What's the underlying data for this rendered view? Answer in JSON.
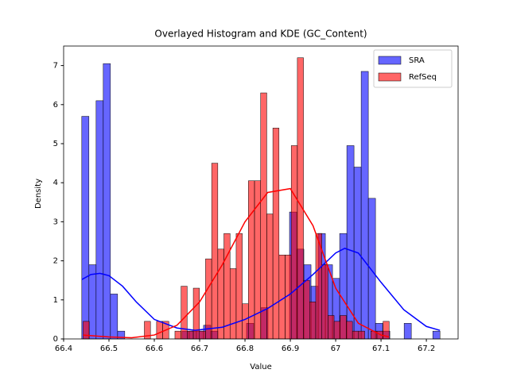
{
  "chart_data": {
    "type": "histogram",
    "title": "Overlayed Histogram and KDE (GC_Content)",
    "xlabel": "Value",
    "ylabel": "Density",
    "xlim": [
      66.4,
      67.27
    ],
    "ylim": [
      0,
      7.5
    ],
    "xticks": [
      66.4,
      66.5,
      66.6,
      66.7,
      66.8,
      66.9,
      67.0,
      67.1,
      67.2
    ],
    "yticks": [
      0,
      1,
      2,
      3,
      4,
      5,
      6,
      7
    ],
    "legend": "upper right",
    "series": [
      {
        "name": "SRA",
        "color": "blue",
        "bins": [
          66.44,
          66.4558,
          66.4716,
          66.4874,
          66.5032,
          66.519,
          66.5348,
          66.5506,
          66.5664,
          66.5822,
          66.598,
          66.6138,
          66.6296,
          66.6454,
          66.6612,
          66.677,
          66.6928,
          66.7086,
          66.7244,
          66.7402,
          66.756,
          66.7718,
          66.7876,
          66.8034,
          66.8192,
          66.835,
          66.8508,
          66.8666,
          66.8824,
          66.8982,
          66.914,
          66.9298,
          66.9456,
          66.9614,
          66.9772,
          66.993,
          67.0088,
          67.0246,
          67.0404,
          67.0562,
          67.072,
          67.0878,
          67.1036,
          67.1194,
          67.1352,
          67.151,
          67.1668,
          67.1826,
          67.1984,
          67.2142,
          67.23
        ],
        "values": [
          5.7,
          1.9,
          6.1,
          7.05,
          1.15,
          0.2,
          0,
          0,
          0,
          0,
          0,
          0,
          0,
          0,
          0.2,
          0.2,
          0.2,
          0.35,
          0.2,
          0,
          0,
          0,
          0,
          0.4,
          0,
          0.8,
          0,
          0,
          0,
          3.25,
          2.3,
          1.9,
          1.35,
          2.7,
          1.9,
          1.55,
          2.7,
          4.95,
          4.4,
          6.85,
          3.6,
          0.4,
          0.2,
          0,
          0,
          0.4,
          0,
          0,
          0,
          0.2
        ],
        "kde": {
          "x": [
            66.44,
            66.46,
            66.48,
            66.5,
            66.53,
            66.56,
            66.6,
            66.65,
            66.69,
            66.75,
            66.8,
            66.85,
            66.9,
            66.95,
            67.0,
            67.02,
            67.05,
            67.1,
            67.15,
            67.2,
            67.23
          ],
          "values": [
            1.52,
            1.65,
            1.68,
            1.62,
            1.35,
            0.95,
            0.5,
            0.28,
            0.22,
            0.3,
            0.5,
            0.78,
            1.15,
            1.65,
            2.2,
            2.32,
            2.2,
            1.45,
            0.75,
            0.32,
            0.22
          ]
        }
      },
      {
        "name": "RefSeq",
        "color": "red",
        "bins": [
          66.443,
          66.4565,
          66.47,
          66.4835,
          66.497,
          66.5105,
          66.524,
          66.5375,
          66.551,
          66.5645,
          66.578,
          66.5915,
          66.605,
          66.6185,
          66.632,
          66.6455,
          66.659,
          66.6725,
          66.686,
          66.6995,
          66.713,
          66.7265,
          66.74,
          66.7535,
          66.767,
          66.7805,
          66.794,
          66.8075,
          66.821,
          66.8345,
          66.848,
          66.8615,
          66.875,
          66.8885,
          66.902,
          66.9155,
          66.929,
          66.9425,
          66.956,
          66.9695,
          66.983,
          66.9965,
          67.01,
          67.0235,
          67.037,
          67.0505,
          67.064,
          67.0775,
          67.091,
          67.1045,
          67.118
        ],
        "values": [
          0.45,
          0,
          0,
          0,
          0,
          0,
          0,
          0,
          0,
          0,
          0.45,
          0,
          0.45,
          0.45,
          0,
          0.2,
          1.35,
          0.2,
          1.3,
          0.2,
          2.05,
          4.5,
          2.3,
          2.7,
          1.8,
          2.7,
          0.9,
          4.05,
          4.05,
          6.3,
          3.2,
          5.4,
          2.15,
          2.15,
          4.95,
          7.2,
          1.5,
          0.95,
          2.7,
          1.9,
          0.6,
          0.45,
          0.6,
          0.45,
          0.2,
          0.2,
          0,
          0.2,
          0.2,
          0.45
        ],
        "kde": {
          "x": [
            66.443,
            66.5,
            66.55,
            66.6,
            66.65,
            66.7,
            66.75,
            66.8,
            66.85,
            66.9,
            66.95,
            67.0,
            67.05,
            67.1,
            67.118
          ],
          "values": [
            0.1,
            0.05,
            0.03,
            0.1,
            0.35,
            0.95,
            1.9,
            3.0,
            3.75,
            3.85,
            2.9,
            1.3,
            0.4,
            0.1,
            0.05
          ]
        }
      }
    ]
  }
}
